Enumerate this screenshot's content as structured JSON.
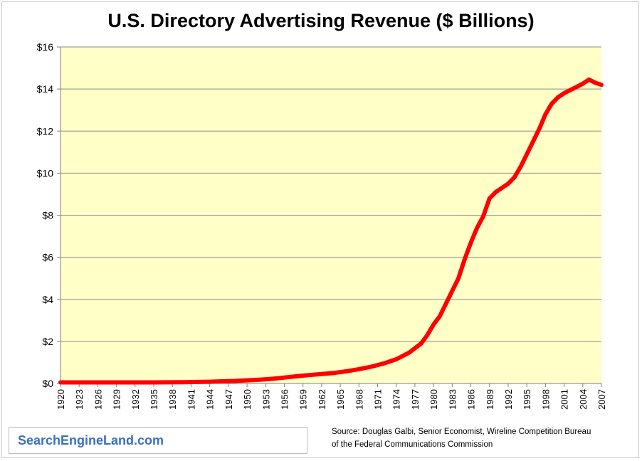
{
  "chart_data": {
    "type": "line",
    "title": "U.S. Directory Advertising Revenue ($ Billions)",
    "xlabel": "",
    "ylabel": "",
    "xlim": [
      1920,
      2007
    ],
    "ylim": [
      0,
      16
    ],
    "y_ticks": [
      "$0",
      "$2",
      "$4",
      "$6",
      "$8",
      "$10",
      "$12",
      "$14",
      "$16"
    ],
    "y_tick_values": [
      0,
      2,
      4,
      6,
      8,
      10,
      12,
      14,
      16
    ],
    "x_ticks": [
      "1920",
      "1923",
      "1926",
      "1929",
      "1932",
      "1935",
      "1938",
      "1941",
      "1944",
      "1947",
      "1950",
      "1953",
      "1956",
      "1959",
      "1962",
      "1965",
      "1968",
      "1971",
      "1974",
      "1977",
      "1980",
      "1983",
      "1986",
      "1989",
      "1992",
      "1995",
      "1998",
      "2001",
      "2004",
      "2007"
    ],
    "grid": "horizontal",
    "series": [
      {
        "x": [
          1920,
          1925,
          1930,
          1935,
          1940,
          1942,
          1944,
          1946,
          1948,
          1950,
          1952,
          1954,
          1956,
          1958,
          1960,
          1962,
          1964,
          1966,
          1968,
          1970,
          1972,
          1974,
          1976,
          1978,
          1979,
          1980,
          1981,
          1982,
          1983,
          1984,
          1985,
          1986,
          1987,
          1988,
          1989,
          1990,
          1991,
          1992,
          1993,
          1994,
          1995,
          1996,
          1997,
          1998,
          1999,
          2000,
          2001,
          2002,
          2003,
          2004,
          2005,
          2006,
          2007
        ],
        "values": [
          0.05,
          0.05,
          0.05,
          0.05,
          0.06,
          0.07,
          0.08,
          0.1,
          0.12,
          0.15,
          0.18,
          0.22,
          0.28,
          0.34,
          0.4,
          0.45,
          0.5,
          0.58,
          0.68,
          0.8,
          0.95,
          1.15,
          1.45,
          1.9,
          2.3,
          2.8,
          3.2,
          3.8,
          4.4,
          5.0,
          5.9,
          6.7,
          7.4,
          7.95,
          8.8,
          9.1,
          9.3,
          9.5,
          9.8,
          10.3,
          10.9,
          11.5,
          12.1,
          12.8,
          13.3,
          13.6,
          13.8,
          13.95,
          14.1,
          14.25,
          14.45,
          14.3,
          14.2
        ]
      }
    ],
    "colors": {
      "line": "#ff0000",
      "plot_background": "#ffffc7",
      "gridline": "#8c8c8c",
      "brand_text": "#3a6fc4"
    }
  },
  "brand": "SearchEngineLand.com",
  "source_lines": [
    "Source: Douglas Galbi, Senior Economist, Wireline Competition Bureau",
    "of the Federal Communications Commission"
  ]
}
